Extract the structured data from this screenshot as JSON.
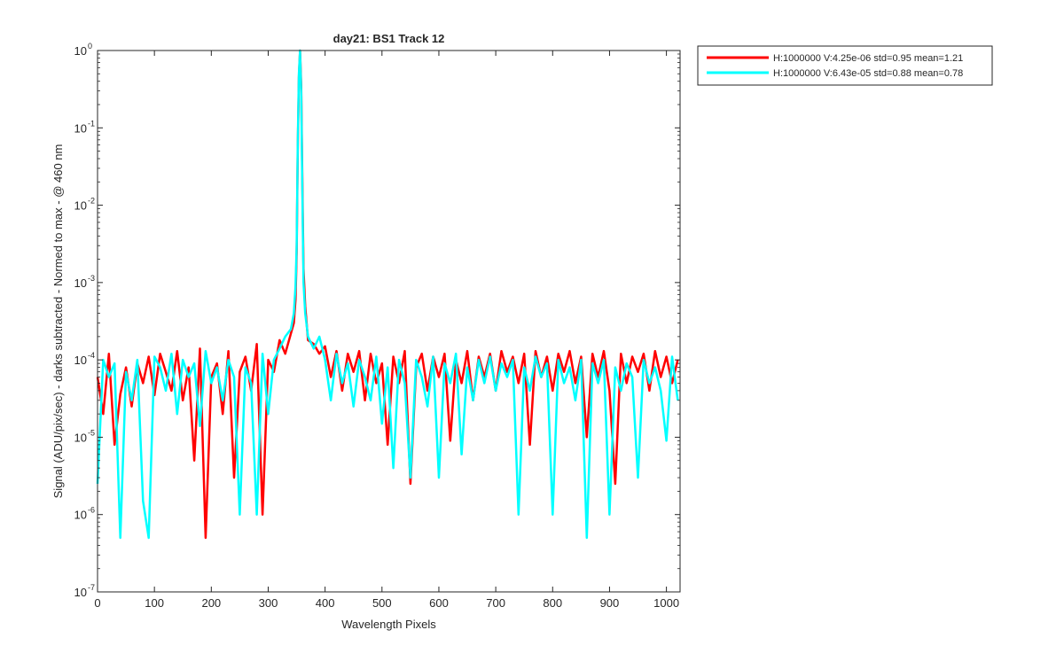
{
  "chart_data": {
    "type": "line",
    "title": "day21: BS1  Track 12",
    "xlabel": "Wavelength Pixels",
    "ylabel": "Signal (ADU/pix/sec) - darks subtracted - Normed to max - @ 460 nm",
    "xlim": [
      0,
      1024
    ],
    "ylim": [
      1e-07,
      1
    ],
    "yscale": "log",
    "grid": false,
    "legend_position": "outside top-right",
    "x_ticks": [
      0,
      100,
      200,
      300,
      400,
      500,
      600,
      700,
      800,
      900,
      1000
    ],
    "x_tick_labels": [
      "0",
      "100",
      "200",
      "300",
      "400",
      "500",
      "600",
      "700",
      "800",
      "900",
      "1000"
    ],
    "y_ticks": [
      {
        "value": 1e-07,
        "base": "10",
        "exp": "-7"
      },
      {
        "value": 1e-06,
        "base": "10",
        "exp": "-6"
      },
      {
        "value": 1e-05,
        "base": "10",
        "exp": "-5"
      },
      {
        "value": 0.0001,
        "base": "10",
        "exp": "-4"
      },
      {
        "value": 0.001,
        "base": "10",
        "exp": "-3"
      },
      {
        "value": 0.01,
        "base": "10",
        "exp": "-2"
      },
      {
        "value": 0.1,
        "base": "10",
        "exp": "-1"
      },
      {
        "value": 1,
        "base": "10",
        "exp": "0"
      }
    ],
    "x": [
      0,
      10,
      20,
      30,
      40,
      50,
      60,
      70,
      80,
      90,
      100,
      110,
      120,
      130,
      140,
      150,
      160,
      170,
      180,
      190,
      200,
      210,
      220,
      230,
      240,
      250,
      260,
      270,
      280,
      290,
      300,
      310,
      320,
      330,
      340,
      345,
      348,
      350,
      352,
      354,
      356,
      358,
      360,
      362,
      365,
      370,
      380,
      390,
      400,
      410,
      420,
      430,
      440,
      450,
      460,
      470,
      480,
      490,
      500,
      510,
      520,
      530,
      540,
      550,
      560,
      570,
      580,
      590,
      600,
      610,
      620,
      630,
      640,
      650,
      660,
      670,
      680,
      690,
      700,
      710,
      720,
      730,
      740,
      750,
      760,
      770,
      780,
      790,
      800,
      810,
      820,
      830,
      840,
      850,
      860,
      870,
      880,
      890,
      900,
      910,
      920,
      930,
      940,
      950,
      960,
      970,
      980,
      990,
      1000,
      1010,
      1020
    ],
    "series": [
      {
        "name": "H:1000000 V:4.25e-06 std=0.95 mean=1.21",
        "color": "#ff0000",
        "values": [
          6e-05,
          2e-05,
          0.00012,
          8e-06,
          3.6e-05,
          8e-05,
          2.5e-05,
          9e-05,
          5e-05,
          0.00011,
          3.5e-05,
          0.00012,
          7e-05,
          4e-05,
          0.00013,
          3e-05,
          8e-05,
          5e-06,
          0.00014,
          5e-07,
          6e-05,
          9e-05,
          2e-05,
          0.00013,
          3e-06,
          7e-05,
          0.00011,
          4e-05,
          0.00016,
          1e-06,
          0.0001,
          7e-05,
          0.00018,
          0.00012,
          0.00022,
          0.0003,
          0.0006,
          0.0025,
          0.05,
          0.45,
          1.0,
          0.35,
          0.02,
          0.0015,
          0.0005,
          0.00018,
          0.00016,
          0.00012,
          0.00015,
          6e-05,
          0.00013,
          4e-05,
          0.00012,
          7e-05,
          0.00013,
          3e-05,
          0.00012,
          5e-05,
          9e-05,
          8e-06,
          0.00011,
          5e-05,
          0.00013,
          2.5e-06,
          8e-05,
          0.00012,
          4e-05,
          0.00011,
          6e-05,
          0.00012,
          9e-06,
          0.0001,
          5e-05,
          0.00013,
          3e-05,
          0.00011,
          6e-05,
          0.00012,
          4e-05,
          0.00013,
          7e-05,
          0.00011,
          5e-05,
          0.00012,
          8e-06,
          0.00013,
          6e-05,
          0.00011,
          4e-05,
          0.00012,
          7e-05,
          0.00013,
          5e-05,
          0.00011,
          1e-05,
          0.00012,
          6e-05,
          0.00013,
          4e-05,
          2.5e-06,
          0.00012,
          5e-05,
          0.00011,
          7e-05,
          0.00012,
          4e-05,
          0.00013,
          6e-05,
          0.00011,
          5e-05,
          0.0001
        ]
      },
      {
        "name": "H:1000000 V:6.43e-05 std=0.88 mean=0.78",
        "color": "#00ffff",
        "values": [
          2.5e-06,
          0.0001,
          6e-05,
          9e-05,
          5e-07,
          7e-05,
          3e-05,
          0.0001,
          1.5e-06,
          5e-07,
          0.00011,
          8e-05,
          4e-05,
          0.00012,
          2e-05,
          0.0001,
          6e-05,
          9e-05,
          1.4e-05,
          0.00013,
          5e-05,
          8e-05,
          3e-05,
          0.0001,
          6e-05,
          1e-06,
          8e-05,
          5e-05,
          1e-06,
          0.00012,
          2e-05,
          0.0001,
          0.00014,
          0.0002,
          0.00025,
          0.0004,
          0.0009,
          0.003,
          0.06,
          0.5,
          1.0,
          0.3,
          0.015,
          0.001,
          0.0004,
          0.0002,
          0.00014,
          0.0002,
          0.0001,
          3e-05,
          0.00012,
          5e-05,
          9e-05,
          2.5e-05,
          0.0001,
          6e-05,
          3e-05,
          0.00011,
          1.5e-05,
          8e-05,
          4e-06,
          0.0001,
          5e-05,
          3e-06,
          0.0001,
          6e-05,
          2.5e-05,
          0.00011,
          3e-06,
          9e-05,
          5e-05,
          0.00012,
          6e-06,
          8e-05,
          3e-05,
          0.0001,
          5e-05,
          0.00011,
          4e-05,
          9e-05,
          6e-05,
          0.0001,
          1e-06,
          8e-05,
          4e-05,
          0.00011,
          6e-05,
          9e-05,
          1e-06,
          0.0001,
          5e-05,
          8e-05,
          3e-05,
          0.0001,
          5e-07,
          9e-05,
          5e-05,
          0.0001,
          1e-06,
          8e-05,
          4e-05,
          9e-05,
          6e-05,
          3e-06,
          0.0001,
          5e-05,
          8e-05,
          4e-05,
          9e-06,
          0.00011,
          3e-05
        ]
      }
    ]
  }
}
